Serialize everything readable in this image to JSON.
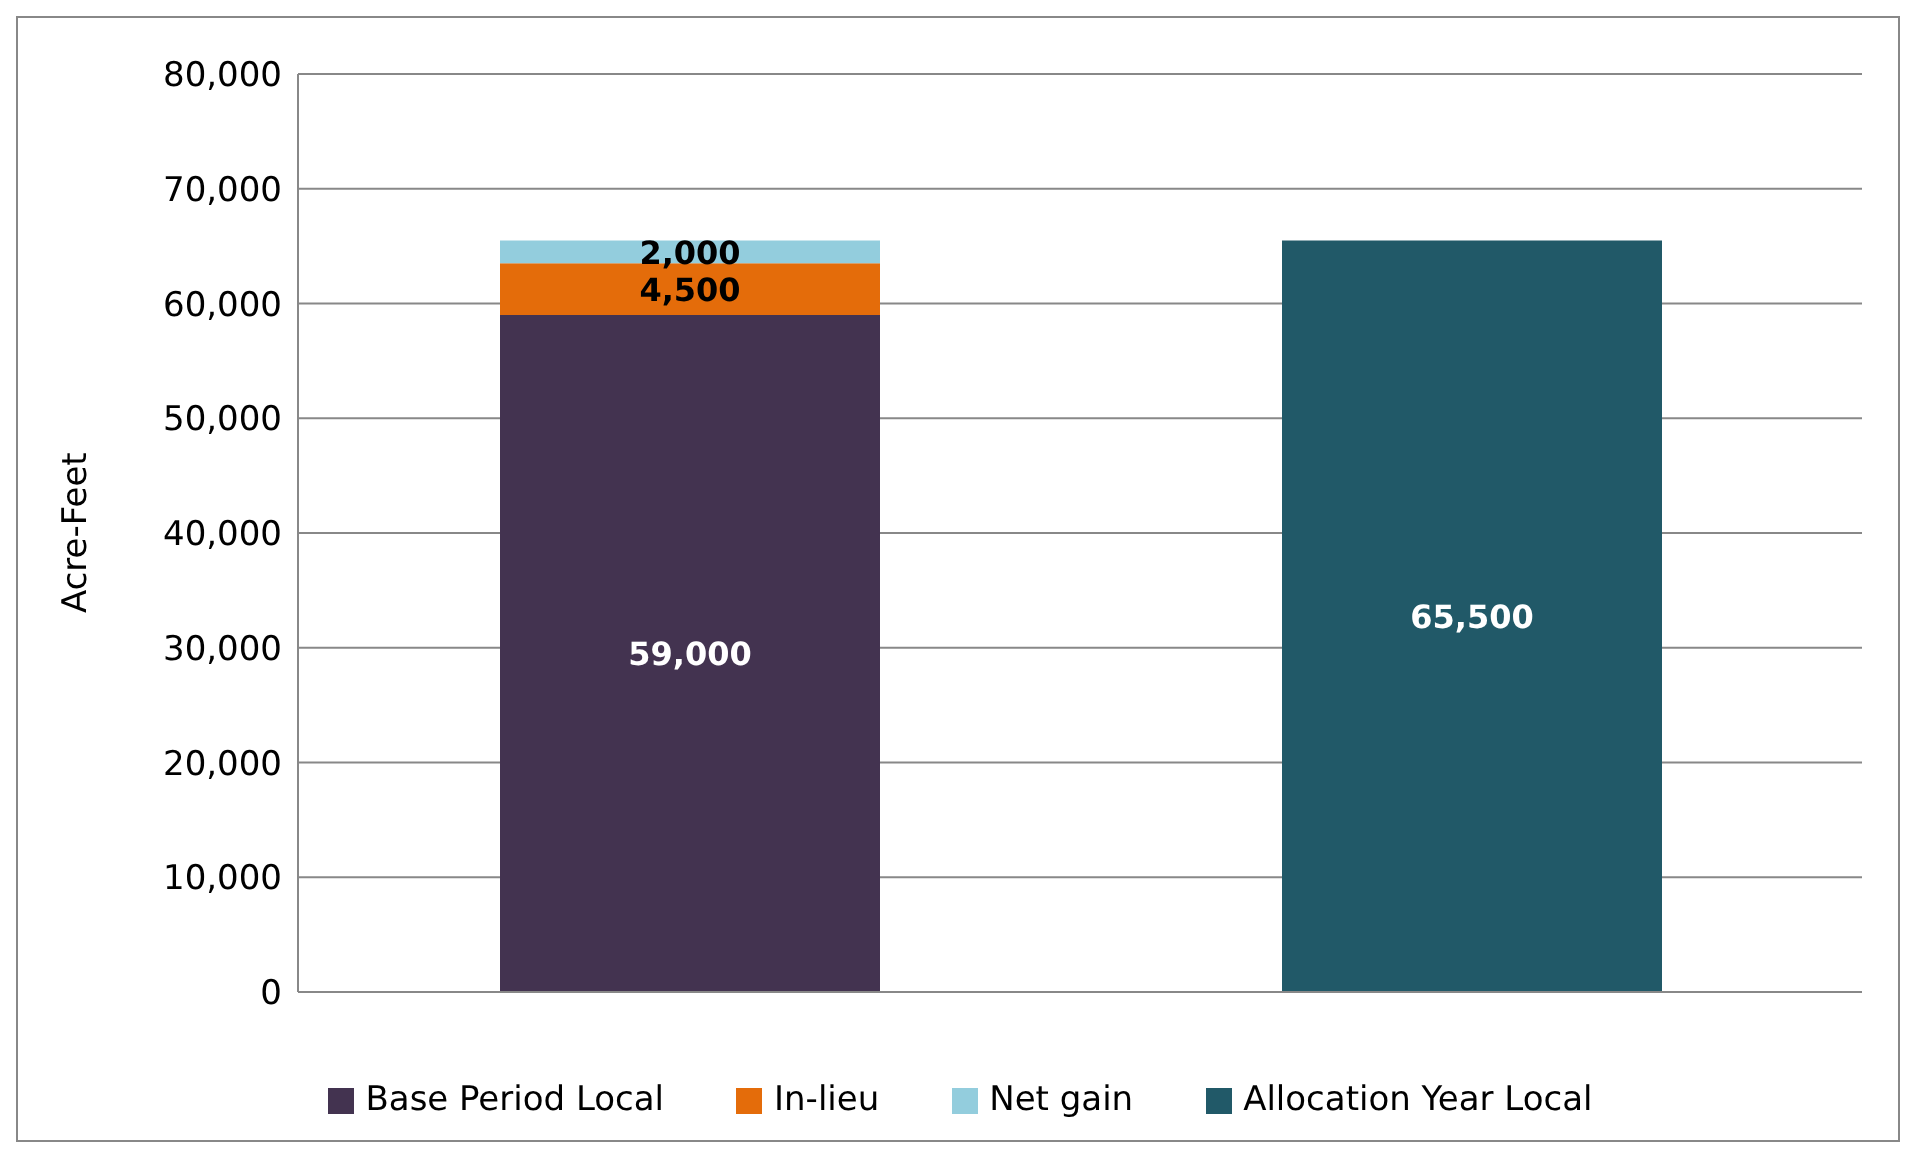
{
  "chart_data": {
    "type": "bar",
    "ylabel": "Acre-Feet",
    "categories": [
      null,
      null
    ],
    "stacked": true,
    "series": [
      {
        "name": "Base Period Local",
        "color": "#433350",
        "values": [
          59000,
          null
        ],
        "value_labels": [
          "59,000",
          null
        ]
      },
      {
        "name": "In-lieu",
        "color": "#e46c0a",
        "values": [
          4500,
          null
        ],
        "value_labels": [
          "4,500",
          null
        ]
      },
      {
        "name": "Net gain",
        "color": "#93cddd",
        "values": [
          2000,
          null
        ],
        "value_labels": [
          "2,000",
          null
        ]
      },
      {
        "name": "Allocation Year Local",
        "color": "#215968",
        "values": [
          null,
          65500
        ],
        "value_labels": [
          null,
          "65,500"
        ]
      }
    ],
    "ylim": [
      0,
      80000
    ],
    "yticks": [
      0,
      {
        "value": 10000,
        "label": "10,000"
      },
      {
        "value": 20000,
        "label": "20,000"
      },
      {
        "value": 30000,
        "label": "30,000"
      },
      {
        "value": 40000,
        "label": "40,000"
      },
      {
        "value": 50000,
        "label": "50,000"
      },
      {
        "value": 60000,
        "label": "60,000"
      },
      {
        "value": 70000,
        "label": "70,000"
      },
      {
        "value": 80000,
        "label": "80,000"
      }
    ],
    "grid": "y",
    "legend": "bottom"
  }
}
